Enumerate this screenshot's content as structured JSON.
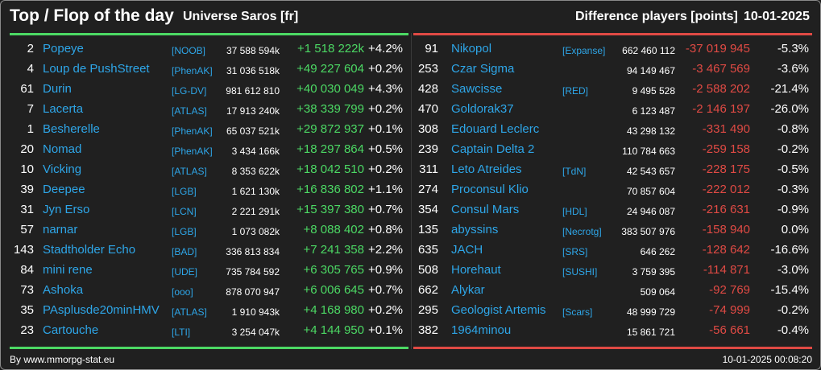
{
  "header": {
    "title": "Top / Flop of the day",
    "universe": "Universe Saros [fr]",
    "metric": "Difference players [points]",
    "date": "10-01-2025"
  },
  "colors": {
    "positive": "#4cd964",
    "negative": "#e04a44",
    "link": "#2ea6e8"
  },
  "top": [
    {
      "rank": "2",
      "name": "Popeye",
      "alliance": "[NOOB]",
      "points": "37 588 594k",
      "delta": "+1 518 222k",
      "pct": "+4.2%"
    },
    {
      "rank": "4",
      "name": "Loup de PushStreet",
      "alliance": "[PhenAK]",
      "points": "31 036 518k",
      "delta": "+49 227 604",
      "pct": "+0.2%"
    },
    {
      "rank": "61",
      "name": "Durin",
      "alliance": "[LG-DV]",
      "points": "981 612 810",
      "delta": "+40 030 049",
      "pct": "+4.3%"
    },
    {
      "rank": "7",
      "name": "Lacerta",
      "alliance": "[ATLAS]",
      "points": "17 913 240k",
      "delta": "+38 339 799",
      "pct": "+0.2%"
    },
    {
      "rank": "1",
      "name": "Besherelle",
      "alliance": "[PhenAK]",
      "points": "65 037 521k",
      "delta": "+29 872 937",
      "pct": "+0.1%"
    },
    {
      "rank": "20",
      "name": "Nomad",
      "alliance": "[PhenAK]",
      "points": "3 434 166k",
      "delta": "+18 297 864",
      "pct": "+0.5%"
    },
    {
      "rank": "10",
      "name": "Vicking",
      "alliance": "[ATLAS]",
      "points": "8 353 622k",
      "delta": "+18 042 510",
      "pct": "+0.2%"
    },
    {
      "rank": "39",
      "name": "Deepee",
      "alliance": "[LGB]",
      "points": "1 621 130k",
      "delta": "+16 836 802",
      "pct": "+1.1%"
    },
    {
      "rank": "31",
      "name": "Jyn Erso",
      "alliance": "[LCN]",
      "points": "2 221 291k",
      "delta": "+15 397 380",
      "pct": "+0.7%"
    },
    {
      "rank": "57",
      "name": "narnar",
      "alliance": "[LGB]",
      "points": "1 073 082k",
      "delta": "+8 088 402",
      "pct": "+0.8%"
    },
    {
      "rank": "143",
      "name": "Stadtholder Echo",
      "alliance": "[BAD]",
      "points": "336 813 834",
      "delta": "+7 241 358",
      "pct": "+2.2%"
    },
    {
      "rank": "84",
      "name": "mini rene",
      "alliance": "[UDE]",
      "points": "735 784 592",
      "delta": "+6 305 765",
      "pct": "+0.9%"
    },
    {
      "rank": "73",
      "name": "Ashoka",
      "alliance": "[ooo]",
      "points": "878 070 947",
      "delta": "+6 006 645",
      "pct": "+0.7%"
    },
    {
      "rank": "35",
      "name": "PAsplusde20minHMV",
      "alliance": "[ATLAS]",
      "points": "1 910 943k",
      "delta": "+4 168 980",
      "pct": "+0.2%"
    },
    {
      "rank": "23",
      "name": "Cartouche",
      "alliance": "[LTI]",
      "points": "3 254 047k",
      "delta": "+4 144 950",
      "pct": "+0.1%"
    }
  ],
  "flop": [
    {
      "rank": "91",
      "name": "Nikopol",
      "alliance": "[Expanse]",
      "points": "662 460 112",
      "delta": "-37 019 945",
      "pct": "-5.3%"
    },
    {
      "rank": "253",
      "name": "Czar Sigma",
      "alliance": "",
      "points": "94 149 467",
      "delta": "-3 467 569",
      "pct": "-3.6%"
    },
    {
      "rank": "428",
      "name": "Sawcisse",
      "alliance": "[RED]",
      "points": "9 495 528",
      "delta": "-2 588 202",
      "pct": "-21.4%"
    },
    {
      "rank": "470",
      "name": "Goldorak37",
      "alliance": "",
      "points": "6 123 487",
      "delta": "-2 146 197",
      "pct": "-26.0%"
    },
    {
      "rank": "308",
      "name": "Edouard Leclerc",
      "alliance": "",
      "points": "43 298 132",
      "delta": "-331 490",
      "pct": "-0.8%"
    },
    {
      "rank": "239",
      "name": "Captain Delta 2",
      "alliance": "",
      "points": "110 784 663",
      "delta": "-259 158",
      "pct": "-0.2%"
    },
    {
      "rank": "311",
      "name": "Leto Atreides",
      "alliance": "[TdN]",
      "points": "42 543 657",
      "delta": "-228 175",
      "pct": "-0.5%"
    },
    {
      "rank": "274",
      "name": "Proconsul Klio",
      "alliance": "",
      "points": "70 857 604",
      "delta": "-222 012",
      "pct": "-0.3%"
    },
    {
      "rank": "354",
      "name": "Consul Mars",
      "alliance": "[HDL]",
      "points": "24 946 087",
      "delta": "-216 631",
      "pct": "-0.9%"
    },
    {
      "rank": "135",
      "name": "abyssins",
      "alliance": "[Necrotg]",
      "points": "383 507 976",
      "delta": "-158 940",
      "pct": "0.0%"
    },
    {
      "rank": "635",
      "name": "JACH",
      "alliance": "[SRS]",
      "points": "646 262",
      "delta": "-128 642",
      "pct": "-16.6%"
    },
    {
      "rank": "508",
      "name": "Horehaut",
      "alliance": "[SUSHI]",
      "points": "3 759 395",
      "delta": "-114 871",
      "pct": "-3.0%"
    },
    {
      "rank": "662",
      "name": "Alykar",
      "alliance": "",
      "points": "509 064",
      "delta": "-92 769",
      "pct": "-15.4%"
    },
    {
      "rank": "295",
      "name": "Geologist Artemis",
      "alliance": "[Scars]",
      "points": "48 999 729",
      "delta": "-74 999",
      "pct": "-0.2%"
    },
    {
      "rank": "382",
      "name": "1964minou",
      "alliance": "",
      "points": "15 861 721",
      "delta": "-56 661",
      "pct": "-0.4%"
    }
  ],
  "footer": {
    "credit": "By www.mmorpg-stat.eu",
    "timestamp": "10-01-2025 00:08:20"
  }
}
